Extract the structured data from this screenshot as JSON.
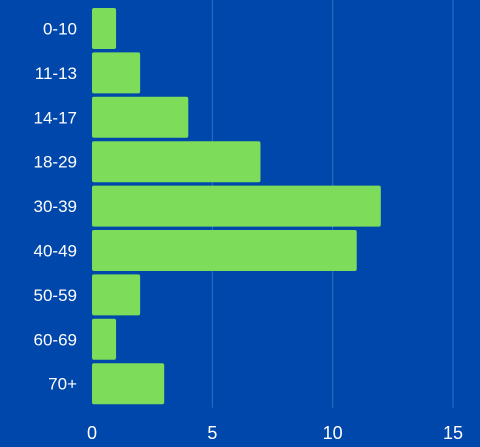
{
  "colors": {
    "background": "#0047ab",
    "bar": "#7ddc5a",
    "text": "#ffffff",
    "grid": "#2f6fc4"
  },
  "chart_data": {
    "type": "bar",
    "orientation": "horizontal",
    "title": "",
    "xlabel": "",
    "ylabel": "",
    "categories": [
      "0-10",
      "11-13",
      "14-17",
      "18-29",
      "30-39",
      "40-49",
      "50-59",
      "60-69",
      "70+"
    ],
    "values": [
      1,
      2,
      4,
      7,
      12,
      11,
      2,
      1,
      3
    ],
    "xlim": [
      0,
      15
    ],
    "xticks": [
      0,
      5,
      10,
      15
    ],
    "grid": "vertical"
  }
}
